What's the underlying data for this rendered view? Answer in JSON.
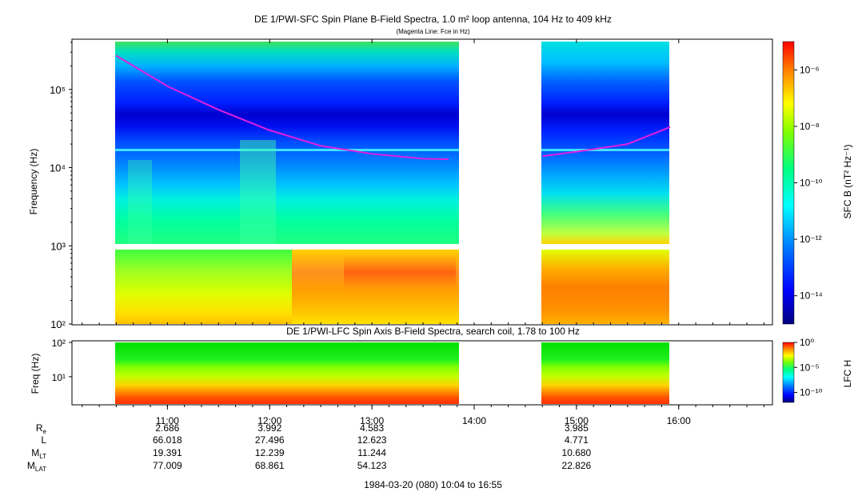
{
  "title_main": "DE 1/PWI-SFC  Spin Plane B-Field Spectra, 1.0 m² loop antenna, 104 Hz to 409 kHz",
  "subtitle_main": "(Magenta Line: Fce in Hz)",
  "title_lower": "DE 1/PWI-LFC  Spin Axis B-Field Spectra, search coil, 1.78 to 100 Hz",
  "footer": "1984-03-20 (080) 10:04 to 16:55",
  "colors": {
    "fce_line": "#e020e0",
    "scale": [
      "#00007f",
      "#0000ff",
      "#0080ff",
      "#00ffff",
      "#80ff80",
      "#ffff00",
      "#ff8000",
      "#ff0000"
    ]
  },
  "chart_data": [
    {
      "type": "heatmap",
      "panel": "SFC spectrogram",
      "ylabel": "Frequency (Hz)",
      "yscale": "log",
      "ylim": [
        100,
        409000
      ],
      "yticks": [
        "10²",
        "10³",
        "10⁴",
        "10⁵"
      ],
      "xlim": [
        "10:04",
        "16:55"
      ],
      "data_intervals": [
        [
          "10:30",
          "13:50"
        ],
        [
          "14:40",
          "15:55"
        ]
      ],
      "fce_line": {
        "x": [
          "10:30",
          "11:00",
          "11:30",
          "12:00",
          "12:30",
          "13:00",
          "13:30",
          "13:45",
          "14:40",
          "15:00",
          "15:30",
          "15:55"
        ],
        "y": [
          270000,
          110000,
          55000,
          30000,
          19000,
          15000,
          13000,
          12800,
          14000,
          16000,
          20000,
          33000
        ]
      },
      "colorbar": {
        "label": "SFC B (nT² Hz⁻¹)",
        "scale": "log",
        "range": [
          1e-15,
          1e-05
        ],
        "ticks": [
          "10⁻⁶",
          "10⁻⁸",
          "10⁻¹⁰",
          "10⁻¹²",
          "10⁻¹⁴"
        ]
      }
    },
    {
      "type": "heatmap",
      "panel": "LFC spectrogram",
      "ylabel": "Freq (Hz)",
      "yscale": "log",
      "ylim": [
        1.78,
        100
      ],
      "yticks": [
        "10¹",
        "10²"
      ],
      "xlim": [
        "10:04",
        "16:55"
      ],
      "data_intervals": [
        [
          "10:30",
          "13:50"
        ],
        [
          "14:40",
          "15:55"
        ]
      ],
      "colorbar": {
        "label": "LFC H",
        "scale": "log",
        "range": [
          1e-12,
          1
        ],
        "ticks": [
          "10⁰",
          "10⁻⁵",
          "10⁻¹⁰"
        ]
      }
    }
  ],
  "xaxis": {
    "ticks": [
      "11:00",
      "12:00",
      "13:00",
      "14:00",
      "15:00",
      "16:00"
    ]
  },
  "ephemeris": {
    "labels": [
      "R",
      "L",
      "M",
      "M"
    ],
    "label_subs": [
      "e",
      "",
      "LT",
      "LAT"
    ],
    "columns": [
      {
        "time": "11:00",
        "values": [
          "2.686",
          "66.018",
          "19.391",
          "77.009"
        ]
      },
      {
        "time": "12:00",
        "values": [
          "3.992",
          "27.496",
          "12.239",
          "68.861"
        ]
      },
      {
        "time": "13:00",
        "values": [
          "4.583",
          "12.623",
          "11.244",
          "54.123"
        ]
      },
      {
        "time": "15:00",
        "values": [
          "3.985",
          "4.771",
          "10.680",
          "22.826"
        ]
      }
    ]
  }
}
